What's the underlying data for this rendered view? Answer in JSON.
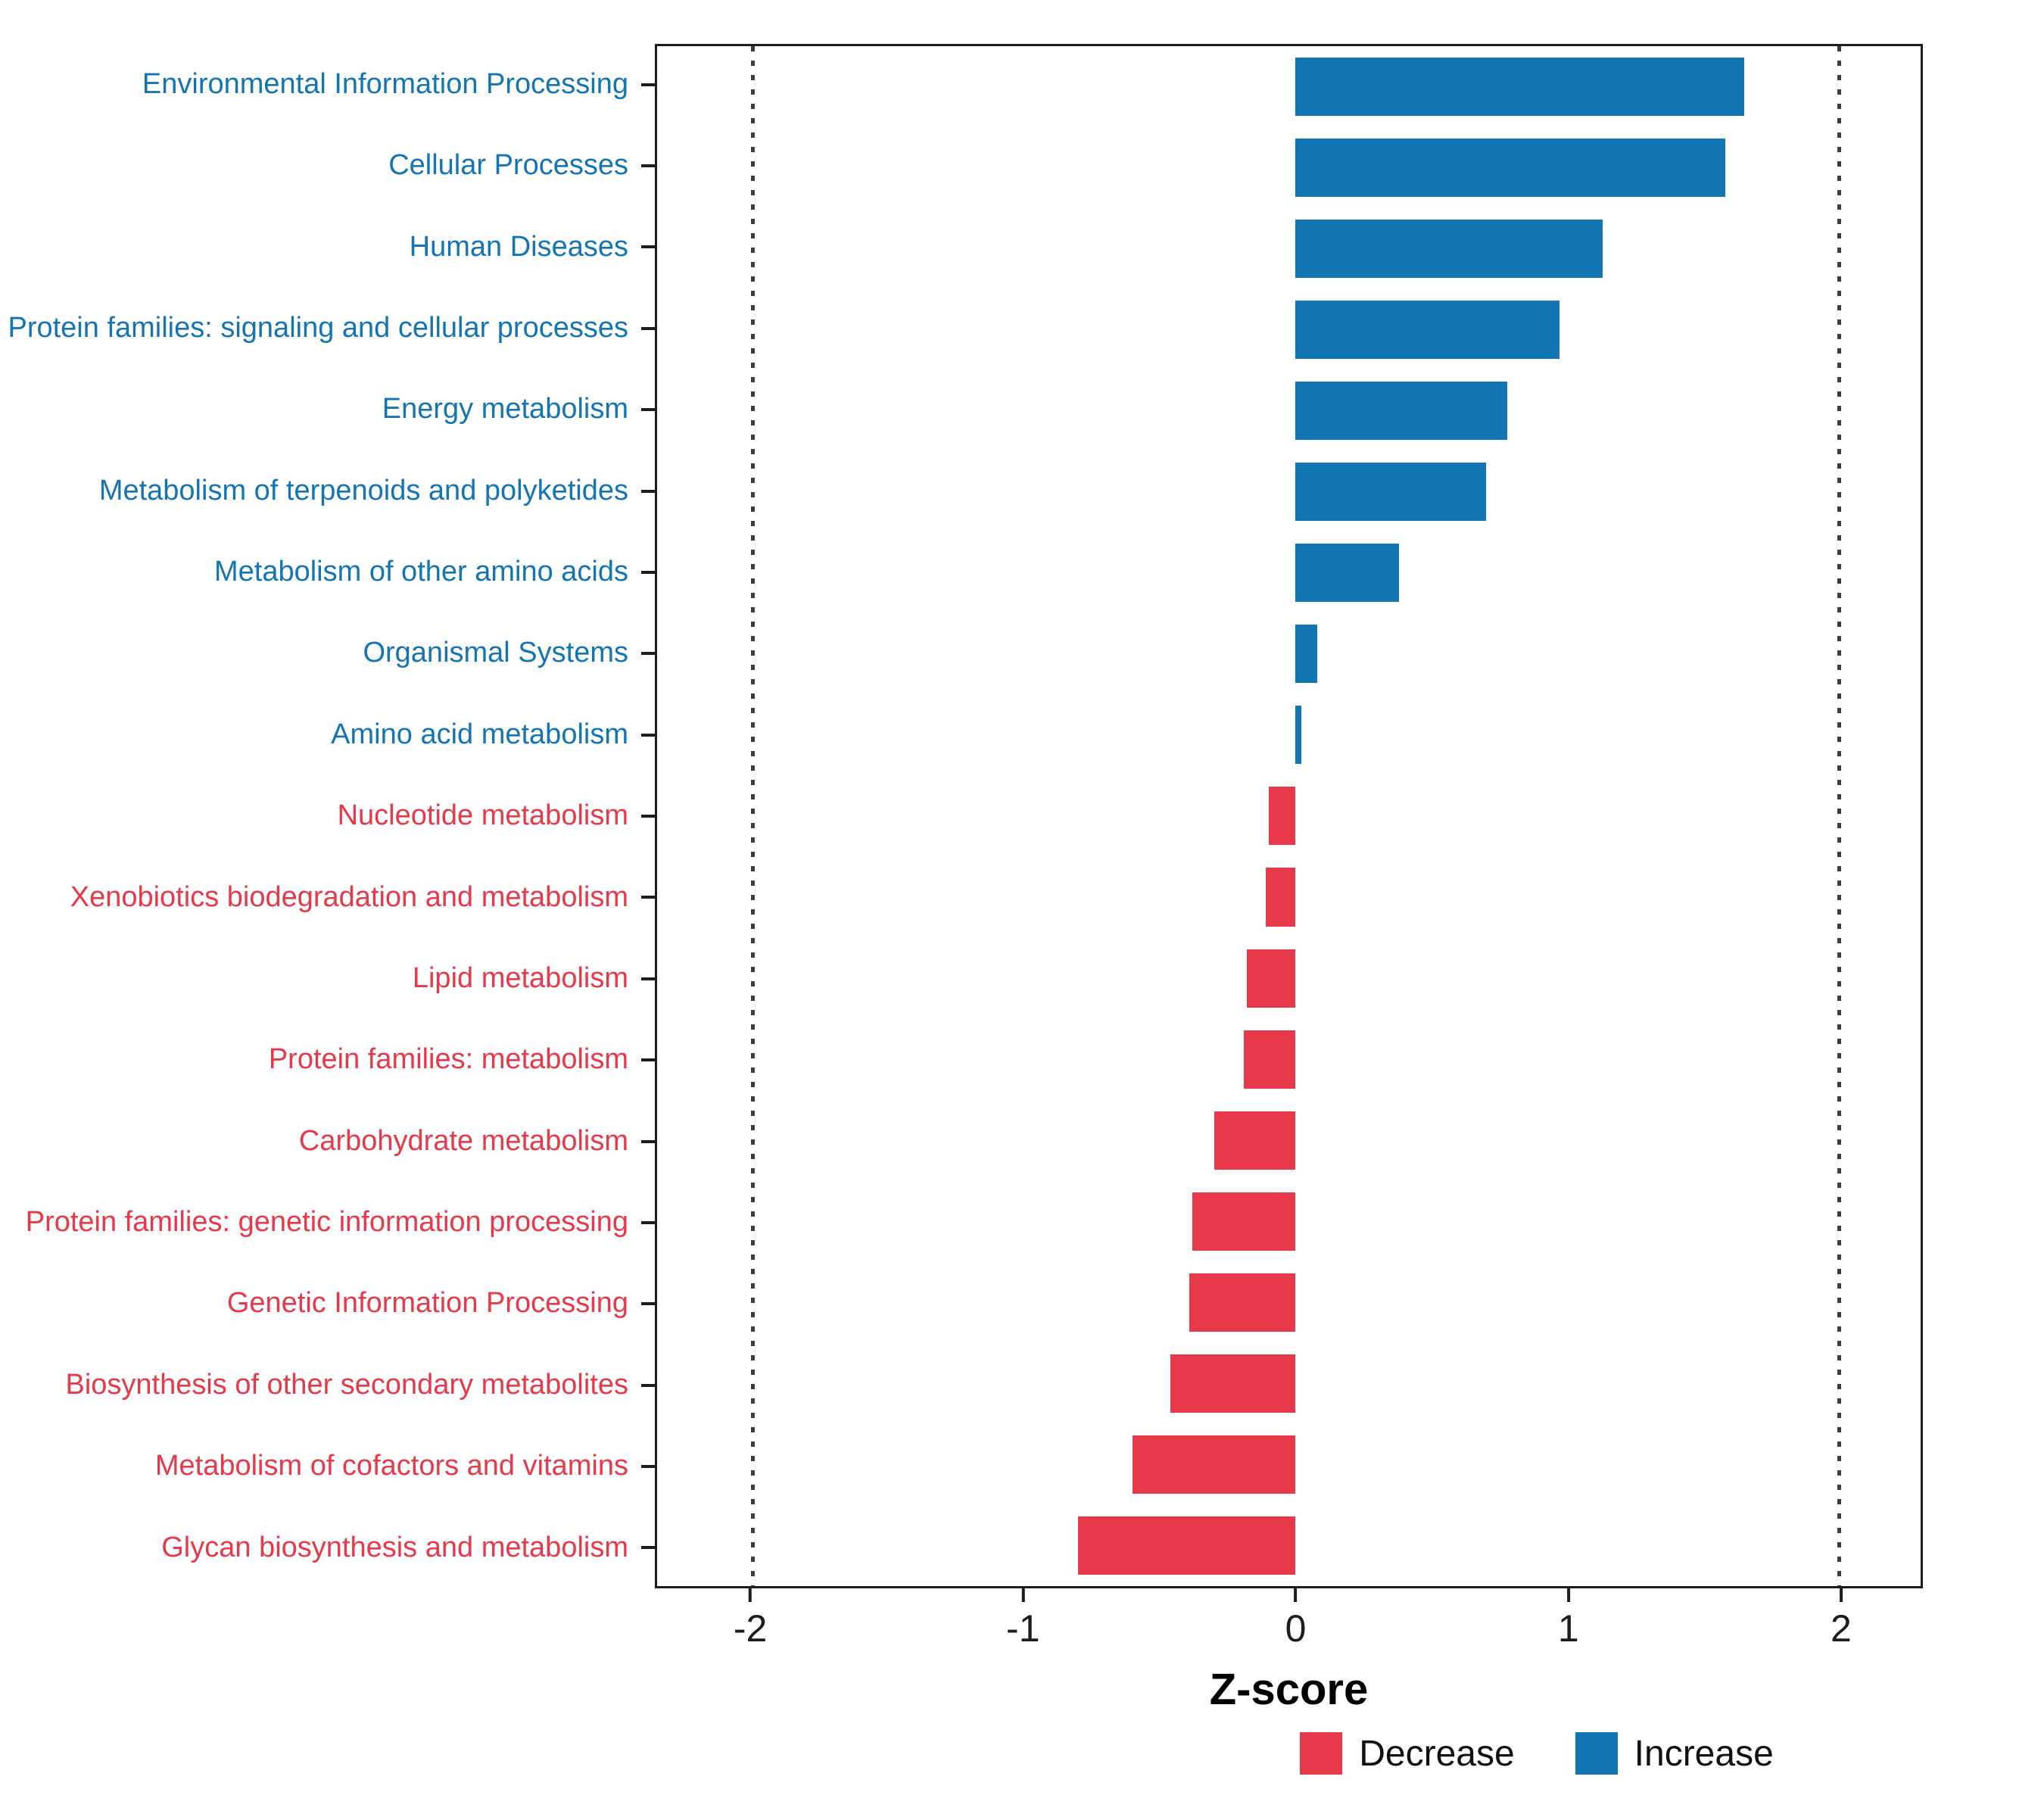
{
  "chart_data": {
    "type": "bar",
    "orientation": "horizontal",
    "title": "",
    "xlabel": "Z-score",
    "ylabel": "",
    "xlim": [
      -2.35,
      2.3
    ],
    "xticks": [
      -2,
      -1,
      0,
      1,
      2
    ],
    "xtick_labels": [
      "-2",
      "-1",
      "0",
      "1",
      "2"
    ],
    "gridlines_at": [
      -2,
      2
    ],
    "gridline_style": "dotted",
    "categories": [
      "Environmental Information Processing",
      "Cellular Processes",
      "Human Diseases",
      "Protein families: signaling and cellular processes",
      "Energy metabolism",
      "Metabolism of terpenoids and polyketides",
      "Metabolism of other amino acids",
      "Organismal Systems",
      "Amino acid metabolism",
      "Nucleotide metabolism",
      "Xenobiotics biodegradation and metabolism",
      "Lipid metabolism",
      "Protein families: metabolism",
      "Carbohydrate metabolism",
      "Protein families: genetic information processing",
      "Genetic Information Processing",
      "Biosynthesis of other secondary metabolites",
      "Metabolism of cofactors and vitamins",
      "Glycan biosynthesis and metabolism"
    ],
    "values": [
      1.65,
      1.58,
      1.13,
      0.97,
      0.78,
      0.7,
      0.38,
      0.08,
      0.02,
      -0.1,
      -0.11,
      -0.18,
      -0.19,
      -0.3,
      -0.38,
      -0.39,
      -0.46,
      -0.6,
      -0.8
    ],
    "groups": [
      "Increase",
      "Increase",
      "Increase",
      "Increase",
      "Increase",
      "Increase",
      "Increase",
      "Increase",
      "Increase",
      "Decrease",
      "Decrease",
      "Decrease",
      "Decrease",
      "Decrease",
      "Decrease",
      "Decrease",
      "Decrease",
      "Decrease",
      "Decrease"
    ],
    "colors": {
      "Increase": "#1375B2",
      "Decrease": "#E8394A"
    },
    "axis_text_color": "#1d1d1d",
    "legend": {
      "position": "bottom",
      "items": [
        {
          "label": "Decrease",
          "color": "#E8394A"
        },
        {
          "label": "Increase",
          "color": "#1375B2"
        }
      ]
    }
  }
}
